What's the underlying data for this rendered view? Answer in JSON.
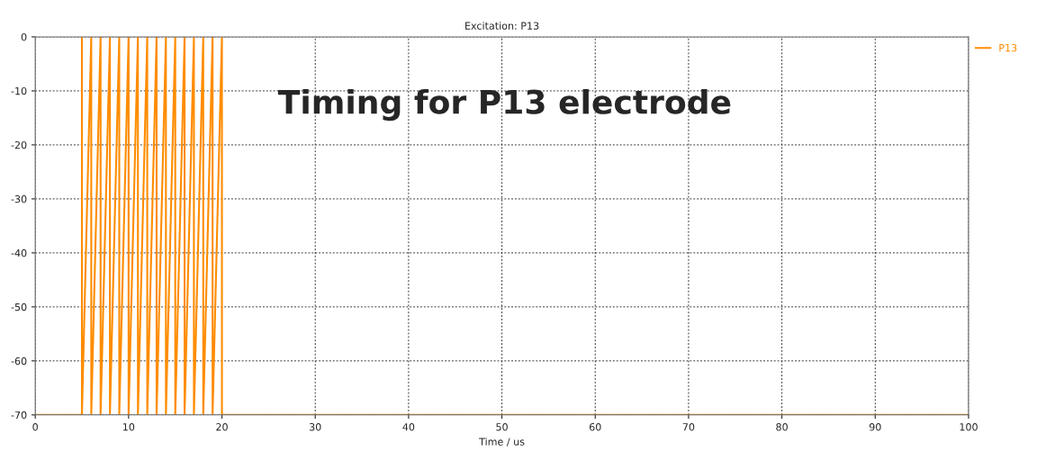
{
  "chart_data": {
    "type": "line",
    "title": "Excitation: P13",
    "xlabel": "Time / us",
    "annotations": [
      "Timing for P13 electrode"
    ],
    "series": [
      {
        "name": "P13",
        "color": "#ff8c00",
        "x": [
          0,
          5,
          5,
          5,
          6,
          6,
          7,
          7,
          8,
          8,
          9,
          9,
          10,
          10,
          11,
          11,
          12,
          12,
          13,
          13,
          14,
          14,
          15,
          15,
          16,
          16,
          17,
          17,
          18,
          18,
          19,
          19,
          20,
          20,
          100
        ],
        "values": [
          -70,
          -70,
          0,
          -70,
          0,
          -70,
          0,
          -70,
          0,
          -70,
          0,
          -70,
          0,
          -70,
          0,
          -70,
          0,
          -70,
          0,
          -70,
          0,
          -70,
          0,
          -70,
          0,
          -70,
          0,
          -70,
          0,
          -70,
          0,
          -70,
          0,
          -70,
          -70
        ]
      }
    ],
    "xlim": [
      0,
      100
    ],
    "xticks": [
      0,
      10,
      20,
      30,
      40,
      50,
      60,
      70,
      80,
      90,
      100
    ],
    "ylim": [
      -70,
      0
    ],
    "yticks": [
      -70,
      -60,
      -50,
      -40,
      -30,
      -20,
      -10,
      0
    ],
    "grid": true,
    "legend": "top right",
    "line_style": "solid",
    "marker": "none"
  }
}
